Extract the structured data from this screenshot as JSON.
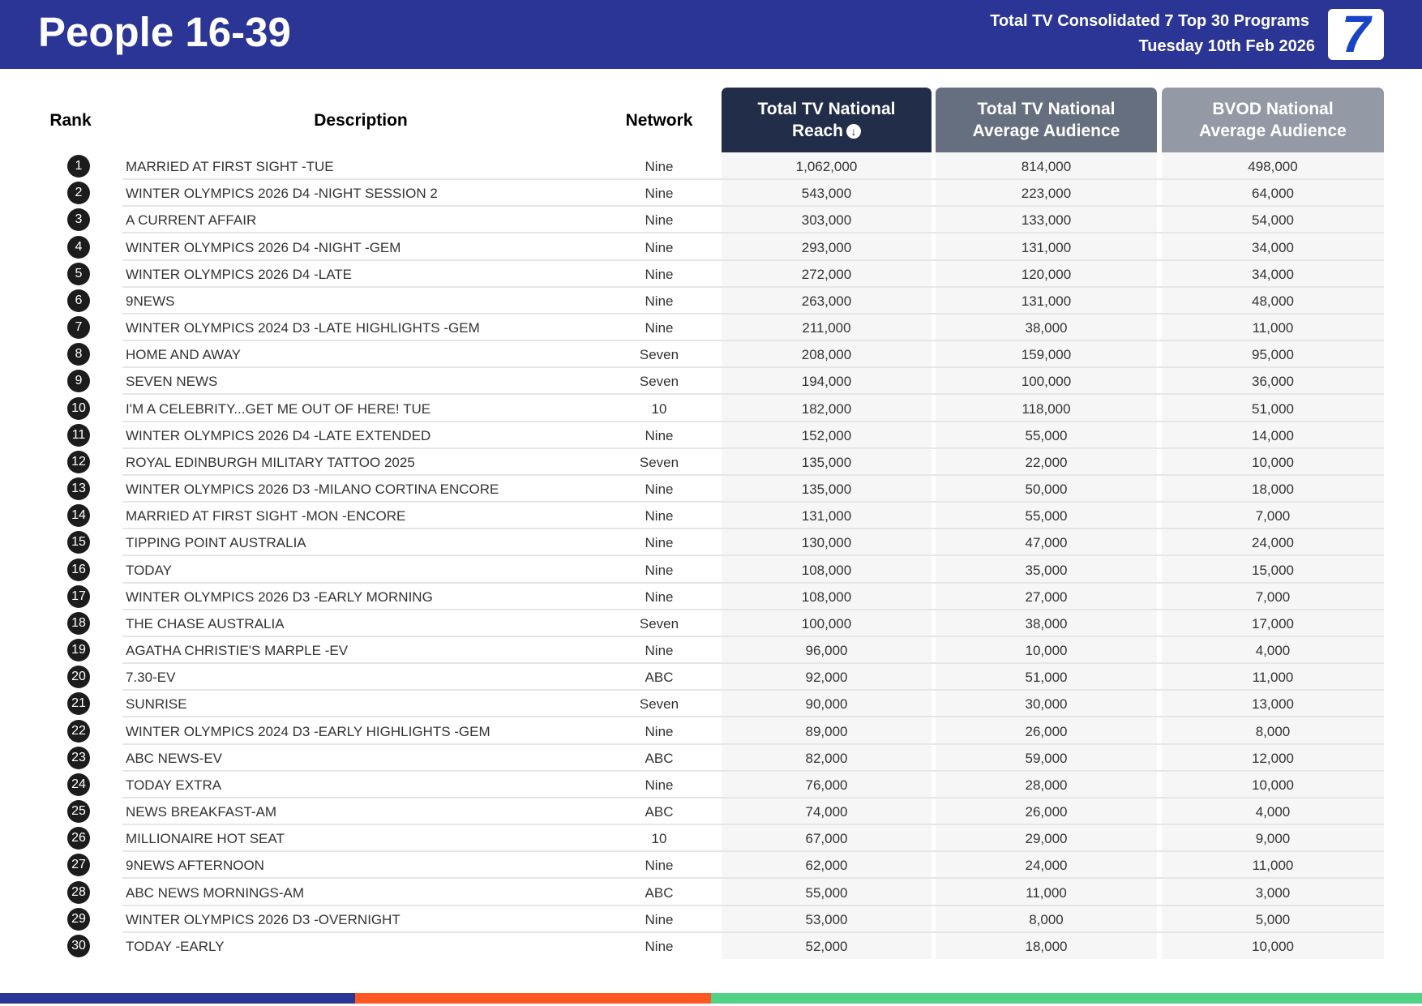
{
  "header": {
    "title": "People 16-39",
    "subtitle": "Total TV Consolidated 7 Top 30 Programs",
    "date": "Tuesday 10th Feb 2026",
    "logo_text": "7"
  },
  "columns": {
    "rank": "Rank",
    "description": "Description",
    "network": "Network",
    "reach_line1": "Total TV National",
    "reach_line2": "Reach",
    "reach_sort_icon": "arrow-down-circle-icon",
    "avg_line1": "Total TV National",
    "avg_line2": "Average Audience",
    "bvod_line1": "BVOD National",
    "bvod_line2": "Average Audience"
  },
  "colors": {
    "header_bg": "#2b3595",
    "bar_navy": "#2b3595",
    "bar_orange": "#ff5722",
    "bar_green": "#50d186"
  },
  "rows": [
    {
      "rank": "1",
      "description": "MARRIED AT FIRST SIGHT -TUE",
      "network": "Nine",
      "reach": "1,062,000",
      "avg": "814,000",
      "bvod": "498,000"
    },
    {
      "rank": "2",
      "description": "WINTER OLYMPICS 2026 D4 -NIGHT SESSION 2",
      "network": "Nine",
      "reach": "543,000",
      "avg": "223,000",
      "bvod": "64,000"
    },
    {
      "rank": "3",
      "description": "A CURRENT AFFAIR",
      "network": "Nine",
      "reach": "303,000",
      "avg": "133,000",
      "bvod": "54,000"
    },
    {
      "rank": "4",
      "description": "WINTER OLYMPICS 2026 D4 -NIGHT -GEM",
      "network": "Nine",
      "reach": "293,000",
      "avg": "131,000",
      "bvod": "34,000"
    },
    {
      "rank": "5",
      "description": "WINTER OLYMPICS 2026 D4 -LATE",
      "network": "Nine",
      "reach": "272,000",
      "avg": "120,000",
      "bvod": "34,000"
    },
    {
      "rank": "6",
      "description": "9NEWS",
      "network": "Nine",
      "reach": "263,000",
      "avg": "131,000",
      "bvod": "48,000"
    },
    {
      "rank": "7",
      "description": "WINTER OLYMPICS 2024 D3 -LATE HIGHLIGHTS -GEM",
      "network": "Nine",
      "reach": "211,000",
      "avg": "38,000",
      "bvod": "11,000"
    },
    {
      "rank": "8",
      "description": "HOME AND AWAY",
      "network": "Seven",
      "reach": "208,000",
      "avg": "159,000",
      "bvod": "95,000"
    },
    {
      "rank": "9",
      "description": "SEVEN NEWS",
      "network": "Seven",
      "reach": "194,000",
      "avg": "100,000",
      "bvod": "36,000"
    },
    {
      "rank": "10",
      "description": "I'M A CELEBRITY...GET ME OUT OF HERE! TUE",
      "network": "10",
      "reach": "182,000",
      "avg": "118,000",
      "bvod": "51,000"
    },
    {
      "rank": "11",
      "description": "WINTER OLYMPICS 2026 D4 -LATE EXTENDED",
      "network": "Nine",
      "reach": "152,000",
      "avg": "55,000",
      "bvod": "14,000"
    },
    {
      "rank": "12",
      "description": "ROYAL EDINBURGH MILITARY TATTOO 2025",
      "network": "Seven",
      "reach": "135,000",
      "avg": "22,000",
      "bvod": "10,000"
    },
    {
      "rank": "13",
      "description": "WINTER OLYMPICS 2026 D3 -MILANO CORTINA ENCORE",
      "network": "Nine",
      "reach": "135,000",
      "avg": "50,000",
      "bvod": "18,000"
    },
    {
      "rank": "14",
      "description": "MARRIED AT FIRST SIGHT -MON -ENCORE",
      "network": "Nine",
      "reach": "131,000",
      "avg": "55,000",
      "bvod": "7,000"
    },
    {
      "rank": "15",
      "description": "TIPPING POINT AUSTRALIA",
      "network": "Nine",
      "reach": "130,000",
      "avg": "47,000",
      "bvod": "24,000"
    },
    {
      "rank": "16",
      "description": "TODAY",
      "network": "Nine",
      "reach": "108,000",
      "avg": "35,000",
      "bvod": "15,000"
    },
    {
      "rank": "17",
      "description": "WINTER OLYMPICS 2026 D3 -EARLY MORNING",
      "network": "Nine",
      "reach": "108,000",
      "avg": "27,000",
      "bvod": "7,000"
    },
    {
      "rank": "18",
      "description": "THE CHASE AUSTRALIA",
      "network": "Seven",
      "reach": "100,000",
      "avg": "38,000",
      "bvod": "17,000"
    },
    {
      "rank": "19",
      "description": "AGATHA CHRISTIE'S MARPLE -EV",
      "network": "Nine",
      "reach": "96,000",
      "avg": "10,000",
      "bvod": "4,000"
    },
    {
      "rank": "20",
      "description": "7.30-EV",
      "network": "ABC",
      "reach": "92,000",
      "avg": "51,000",
      "bvod": "11,000"
    },
    {
      "rank": "21",
      "description": "SUNRISE",
      "network": "Seven",
      "reach": "90,000",
      "avg": "30,000",
      "bvod": "13,000"
    },
    {
      "rank": "22",
      "description": "WINTER OLYMPICS 2024 D3 -EARLY HIGHLIGHTS -GEM",
      "network": "Nine",
      "reach": "89,000",
      "avg": "26,000",
      "bvod": "8,000"
    },
    {
      "rank": "23",
      "description": "ABC NEWS-EV",
      "network": "ABC",
      "reach": "82,000",
      "avg": "59,000",
      "bvod": "12,000"
    },
    {
      "rank": "24",
      "description": "TODAY EXTRA",
      "network": "Nine",
      "reach": "76,000",
      "avg": "28,000",
      "bvod": "10,000"
    },
    {
      "rank": "25",
      "description": "NEWS BREAKFAST-AM",
      "network": "ABC",
      "reach": "74,000",
      "avg": "26,000",
      "bvod": "4,000"
    },
    {
      "rank": "26",
      "description": "MILLIONAIRE HOT SEAT",
      "network": "10",
      "reach": "67,000",
      "avg": "29,000",
      "bvod": "9,000"
    },
    {
      "rank": "27",
      "description": "9NEWS AFTERNOON",
      "network": "Nine",
      "reach": "62,000",
      "avg": "24,000",
      "bvod": "11,000"
    },
    {
      "rank": "28",
      "description": "ABC NEWS MORNINGS-AM",
      "network": "ABC",
      "reach": "55,000",
      "avg": "11,000",
      "bvod": "3,000"
    },
    {
      "rank": "29",
      "description": "WINTER OLYMPICS 2026 D3 -OVERNIGHT",
      "network": "Nine",
      "reach": "53,000",
      "avg": "8,000",
      "bvod": "5,000"
    },
    {
      "rank": "30",
      "description": "TODAY -EARLY",
      "network": "Nine",
      "reach": "52,000",
      "avg": "18,000",
      "bvod": "10,000"
    }
  ]
}
